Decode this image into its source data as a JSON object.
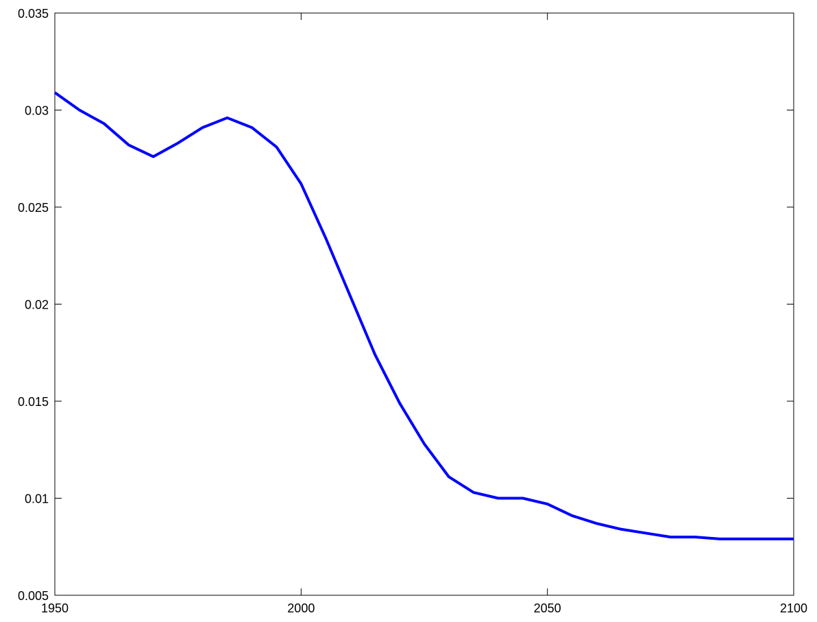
{
  "chart_data": {
    "type": "line",
    "title": "",
    "xlabel": "",
    "ylabel": "",
    "xlim": [
      1950,
      2100
    ],
    "ylim": [
      0.005,
      0.035
    ],
    "grid": false,
    "legend": "none",
    "x_ticks": [
      1950,
      2000,
      2050,
      2100
    ],
    "x_tick_labels": [
      "1950",
      "2000",
      "2050",
      "2100"
    ],
    "y_ticks": [
      0.005,
      0.01,
      0.015,
      0.02,
      0.025,
      0.03,
      0.035
    ],
    "y_tick_labels": [
      "0.005",
      "0.01",
      "0.015",
      "0.02",
      "0.025",
      "0.03",
      "0.035"
    ],
    "series": [
      {
        "color": "#0000ff",
        "x": [
          1950,
          1955,
          1960,
          1965,
          1970,
          1975,
          1980,
          1985,
          1990,
          1995,
          2000,
          2005,
          2010,
          2015,
          2020,
          2025,
          2030,
          2035,
          2040,
          2045,
          2050,
          2055,
          2060,
          2065,
          2070,
          2075,
          2080,
          2085,
          2090,
          2095,
          2100
        ],
        "y": [
          0.0309,
          0.03,
          0.0293,
          0.0282,
          0.0276,
          0.0283,
          0.0291,
          0.0296,
          0.0291,
          0.0281,
          0.0262,
          0.0234,
          0.0204,
          0.0174,
          0.0149,
          0.0128,
          0.0111,
          0.0103,
          0.01,
          0.01,
          0.0097,
          0.0091,
          0.0087,
          0.0084,
          0.0082,
          0.008,
          0.008,
          0.0079,
          0.0079,
          0.0079,
          0.0079
        ]
      }
    ]
  }
}
